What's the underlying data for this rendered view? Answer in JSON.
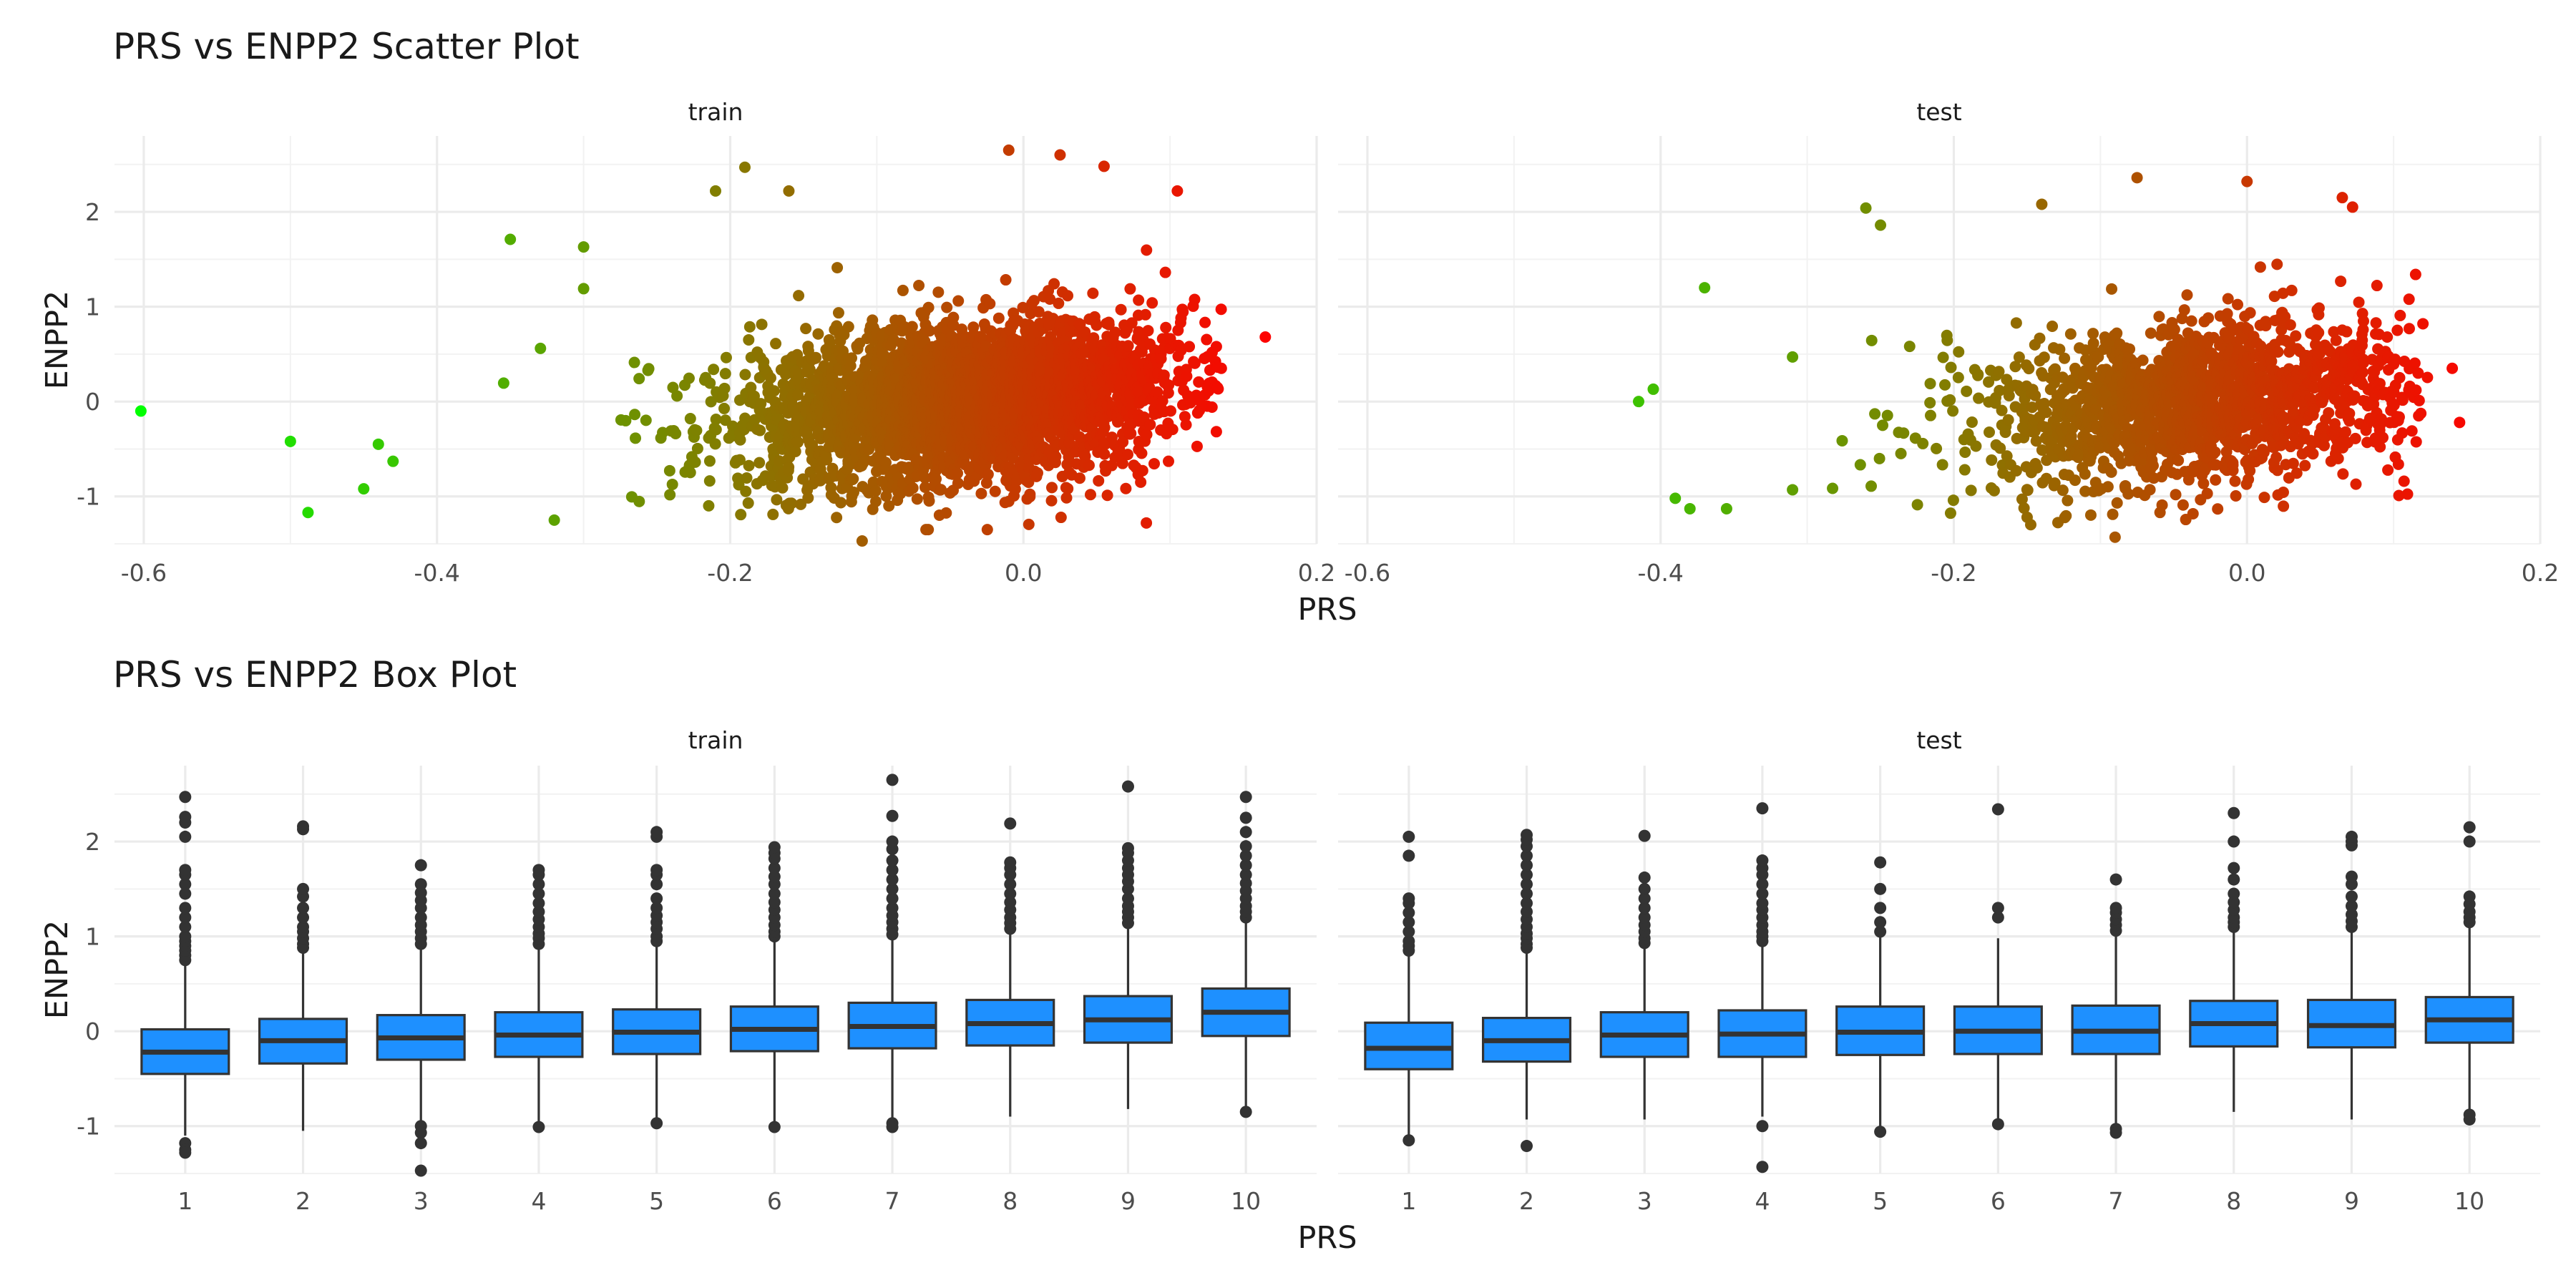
{
  "colors": {
    "low": "#00ff00",
    "high": "#ff0000",
    "box_fill": "#1e90ff",
    "box_line": "#333333",
    "point": "#333333"
  },
  "chart_data": [
    {
      "type": "scatter",
      "title": "PRS vs ENPP2 Scatter Plot",
      "xlabel": "PRS",
      "ylabel": "ENPP2",
      "xlim": [
        -0.62,
        0.2
      ],
      "ylim": [
        -1.5,
        2.8
      ],
      "x_ticks": [
        -0.6,
        -0.4,
        -0.2,
        0.0,
        0.2
      ],
      "x_tick_labels": [
        "-0.6",
        "-0.4",
        "-0.2",
        "0.0",
        "0.2"
      ],
      "y_ticks": [
        -1,
        0,
        1,
        2
      ],
      "y_tick_labels": [
        "-1",
        "0",
        "1",
        "2"
      ],
      "color_scale": {
        "by": "PRS",
        "low": "#00ff00",
        "high": "#ff0000",
        "domain": [
          -0.6,
          0.17
        ]
      },
      "grid": true,
      "panels": [
        {
          "label": "train",
          "cloud": {
            "n": 3200,
            "x_center": -0.04,
            "x_spread": 0.075,
            "x_range": [
              -0.42,
              0.135
            ],
            "slope": 1.4,
            "intercept": 0.0,
            "y_sd": 0.42
          },
          "points": [
            {
              "x": -0.602,
              "y": -0.1
            },
            {
              "x": -0.5,
              "y": -0.42
            },
            {
              "x": -0.488,
              "y": -1.17
            },
            {
              "x": -0.45,
              "y": -0.92
            },
            {
              "x": -0.44,
              "y": -0.45
            },
            {
              "x": -0.43,
              "y": -0.63
            },
            {
              "x": -0.35,
              "y": 1.71
            },
            {
              "x": -0.3,
              "y": 1.63
            },
            {
              "x": -0.3,
              "y": 1.19
            },
            {
              "x": -0.32,
              "y": -1.25
            },
            {
              "x": -0.21,
              "y": 2.22
            },
            {
              "x": -0.19,
              "y": 2.47
            },
            {
              "x": -0.16,
              "y": 2.22
            },
            {
              "x": -0.11,
              "y": -1.47
            },
            {
              "x": -0.01,
              "y": 2.65
            },
            {
              "x": 0.025,
              "y": 2.6
            },
            {
              "x": 0.055,
              "y": 2.48
            },
            {
              "x": 0.105,
              "y": 2.22
            },
            {
              "x": 0.165,
              "y": 0.68
            },
            {
              "x": 0.135,
              "y": 0.35
            },
            {
              "x": 0.08,
              "y": -0.85
            }
          ]
        },
        {
          "label": "test",
          "cloud": {
            "n": 1700,
            "x_center": -0.03,
            "x_spread": 0.07,
            "x_range": [
              -0.36,
              0.13
            ],
            "slope": 1.3,
            "intercept": 0.0,
            "y_sd": 0.42
          },
          "points": [
            {
              "x": -0.415,
              "y": 0.0
            },
            {
              "x": -0.405,
              "y": 0.13
            },
            {
              "x": -0.39,
              "y": -1.02
            },
            {
              "x": -0.38,
              "y": -1.13
            },
            {
              "x": -0.37,
              "y": 1.2
            },
            {
              "x": -0.355,
              "y": -1.13
            },
            {
              "x": -0.31,
              "y": 0.47
            },
            {
              "x": -0.31,
              "y": -0.93
            },
            {
              "x": -0.26,
              "y": 2.04
            },
            {
              "x": -0.25,
              "y": 1.86
            },
            {
              "x": -0.15,
              "y": -1.22
            },
            {
              "x": -0.09,
              "y": -1.43
            },
            {
              "x": -0.075,
              "y": 2.36
            },
            {
              "x": 0.0,
              "y": 2.32
            },
            {
              "x": 0.065,
              "y": 2.15
            },
            {
              "x": 0.072,
              "y": 2.05
            },
            {
              "x": 0.14,
              "y": 0.35
            },
            {
              "x": 0.145,
              "y": -0.22
            },
            {
              "x": 0.115,
              "y": 1.34
            },
            {
              "x": 0.12,
              "y": 0.82
            },
            {
              "x": -0.14,
              "y": 2.08
            }
          ]
        }
      ]
    },
    {
      "type": "box",
      "title": "PRS vs ENPP2 Box Plot",
      "xlabel": "PRS",
      "ylabel": "ENPP2",
      "categories": [
        "1",
        "2",
        "3",
        "4",
        "5",
        "6",
        "7",
        "8",
        "9",
        "10"
      ],
      "ylim": [
        -1.5,
        2.8
      ],
      "y_ticks": [
        -1,
        0,
        1,
        2
      ],
      "y_tick_labels": [
        "-1",
        "0",
        "1",
        "2"
      ],
      "grid": true,
      "panels": [
        {
          "label": "train",
          "boxes": [
            {
              "q1": -0.45,
              "median": -0.22,
              "q3": 0.02,
              "whisker_low": -1.1,
              "whisker_high": 0.7,
              "outliers": [
                -1.18,
                -1.25,
                -1.28,
                0.75,
                0.8,
                0.85,
                0.9,
                0.95,
                1.0,
                1.1,
                1.2,
                1.3,
                1.45,
                1.55,
                1.65,
                1.7,
                2.05,
                2.2,
                2.26,
                2.47
              ]
            },
            {
              "q1": -0.34,
              "median": -0.1,
              "q3": 0.13,
              "whisker_low": -1.05,
              "whisker_high": 0.82,
              "outliers": [
                0.88,
                0.92,
                0.98,
                1.05,
                1.1,
                1.2,
                1.3,
                1.42,
                1.5,
                2.13,
                2.16
              ]
            },
            {
              "q1": -0.3,
              "median": -0.07,
              "q3": 0.17,
              "whisker_low": -0.95,
              "whisker_high": 0.88,
              "outliers": [
                -1.0,
                -1.07,
                -1.18,
                -1.47,
                0.92,
                0.98,
                1.05,
                1.12,
                1.2,
                1.3,
                1.38,
                1.46,
                1.55,
                1.75
              ]
            },
            {
              "q1": -0.27,
              "median": -0.04,
              "q3": 0.2,
              "whisker_low": -0.98,
              "whisker_high": 0.9,
              "outliers": [
                -1.01,
                0.92,
                0.98,
                1.03,
                1.1,
                1.18,
                1.26,
                1.35,
                1.45,
                1.55,
                1.65,
                1.7
              ]
            },
            {
              "q1": -0.24,
              "median": -0.01,
              "q3": 0.23,
              "whisker_low": -0.95,
              "whisker_high": 0.93,
              "outliers": [
                -0.97,
                0.95,
                1.0,
                1.08,
                1.15,
                1.22,
                1.3,
                1.4,
                1.55,
                1.65,
                1.7,
                2.05,
                2.1
              ]
            },
            {
              "q1": -0.21,
              "median": 0.02,
              "q3": 0.26,
              "whisker_low": -0.95,
              "whisker_high": 0.95,
              "outliers": [
                -1.01,
                1.0,
                1.05,
                1.12,
                1.2,
                1.28,
                1.36,
                1.45,
                1.55,
                1.63,
                1.72,
                1.82,
                1.88,
                1.94
              ]
            },
            {
              "q1": -0.18,
              "median": 0.05,
              "q3": 0.3,
              "whisker_low": -0.95,
              "whisker_high": 1.0,
              "outliers": [
                -0.97,
                -1.01,
                1.02,
                1.08,
                1.15,
                1.22,
                1.3,
                1.4,
                1.5,
                1.6,
                1.7,
                1.8,
                1.92,
                2.0,
                2.27,
                2.65
              ]
            },
            {
              "q1": -0.15,
              "median": 0.08,
              "q3": 0.33,
              "whisker_low": -0.9,
              "whisker_high": 1.05,
              "outliers": [
                1.08,
                1.14,
                1.2,
                1.28,
                1.36,
                1.45,
                1.55,
                1.65,
                1.72,
                1.78,
                2.19
              ]
            },
            {
              "q1": -0.12,
              "median": 0.12,
              "q3": 0.37,
              "whisker_low": -0.82,
              "whisker_high": 1.1,
              "outliers": [
                1.14,
                1.2,
                1.26,
                1.32,
                1.4,
                1.5,
                1.58,
                1.65,
                1.72,
                1.8,
                1.88,
                1.93,
                2.58
              ]
            },
            {
              "q1": -0.05,
              "median": 0.2,
              "q3": 0.45,
              "whisker_low": -0.8,
              "whisker_high": 1.15,
              "outliers": [
                -0.85,
                1.2,
                1.26,
                1.32,
                1.4,
                1.48,
                1.56,
                1.65,
                1.75,
                1.85,
                1.95,
                2.1,
                2.25,
                2.47
              ]
            }
          ]
        },
        {
          "label": "test",
          "boxes": [
            {
              "q1": -0.4,
              "median": -0.18,
              "q3": 0.09,
              "whisker_low": -1.1,
              "whisker_high": 0.82,
              "outliers": [
                -1.15,
                0.85,
                0.9,
                0.95,
                1.05,
                1.15,
                1.25,
                1.35,
                1.4,
                1.85,
                2.05
              ]
            },
            {
              "q1": -0.32,
              "median": -0.1,
              "q3": 0.14,
              "whisker_low": -0.93,
              "whisker_high": 0.85,
              "outliers": [
                -1.21,
                0.88,
                0.92,
                0.98,
                1.03,
                1.1,
                1.18,
                1.26,
                1.35,
                1.45,
                1.55,
                1.65,
                1.75,
                1.85,
                1.95,
                2.02,
                2.07
              ]
            },
            {
              "q1": -0.27,
              "median": -0.04,
              "q3": 0.2,
              "whisker_low": -0.93,
              "whisker_high": 0.9,
              "outliers": [
                0.93,
                0.98,
                1.05,
                1.12,
                1.2,
                1.3,
                1.4,
                1.5,
                1.62,
                2.06
              ]
            },
            {
              "q1": -0.27,
              "median": -0.03,
              "q3": 0.22,
              "whisker_low": -0.9,
              "whisker_high": 0.92,
              "outliers": [
                -1.0,
                -1.43,
                0.95,
                1.0,
                1.05,
                1.12,
                1.2,
                1.28,
                1.35,
                1.45,
                1.55,
                1.65,
                1.72,
                1.8,
                2.35
              ]
            },
            {
              "q1": -0.25,
              "median": -0.01,
              "q3": 0.26,
              "whisker_low": -1.0,
              "whisker_high": 1.0,
              "outliers": [
                -1.06,
                1.05,
                1.15,
                1.3,
                1.5,
                1.78
              ]
            },
            {
              "q1": -0.24,
              "median": 0.0,
              "q3": 0.26,
              "whisker_low": -0.95,
              "whisker_high": 0.98,
              "outliers": [
                -0.98,
                1.2,
                1.3,
                2.34
              ]
            },
            {
              "q1": -0.24,
              "median": 0.0,
              "q3": 0.27,
              "whisker_low": -1.0,
              "whisker_high": 1.02,
              "outliers": [
                -1.03,
                -1.07,
                1.06,
                1.12,
                1.18,
                1.25,
                1.3,
                1.6
              ]
            },
            {
              "q1": -0.16,
              "median": 0.08,
              "q3": 0.32,
              "whisker_low": -0.85,
              "whisker_high": 1.05,
              "outliers": [
                1.1,
                1.15,
                1.2,
                1.28,
                1.36,
                1.45,
                1.6,
                1.72,
                2.0,
                2.3
              ]
            },
            {
              "q1": -0.17,
              "median": 0.06,
              "q3": 0.33,
              "whisker_low": -0.93,
              "whisker_high": 1.05,
              "outliers": [
                1.1,
                1.16,
                1.23,
                1.32,
                1.42,
                1.55,
                1.63,
                1.96,
                2.0,
                2.05
              ]
            },
            {
              "q1": -0.12,
              "median": 0.12,
              "q3": 0.36,
              "whisker_low": -0.85,
              "whisker_high": 1.1,
              "outliers": [
                -0.88,
                -0.93,
                1.15,
                1.2,
                1.26,
                1.34,
                1.42,
                2.0,
                2.15
              ]
            }
          ]
        }
      ]
    }
  ]
}
